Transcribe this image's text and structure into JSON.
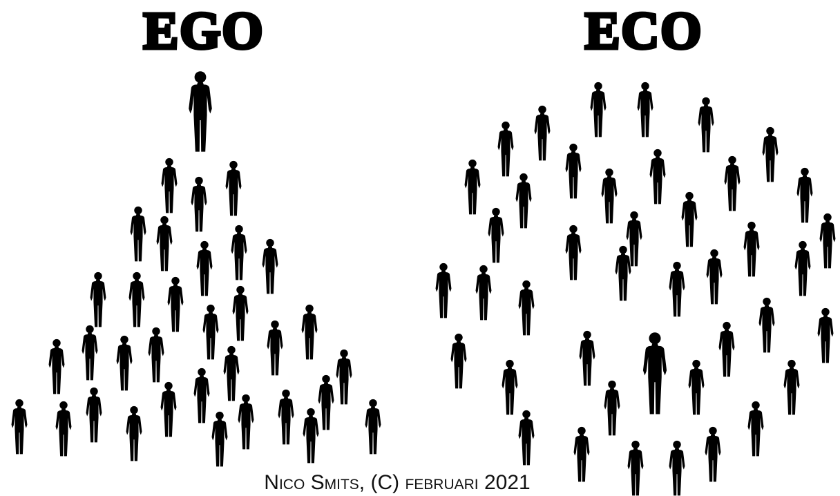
{
  "titles": {
    "left": "EGO",
    "right": "ECO"
  },
  "footer": "Nico Smits, (C) februari 2021"
}
